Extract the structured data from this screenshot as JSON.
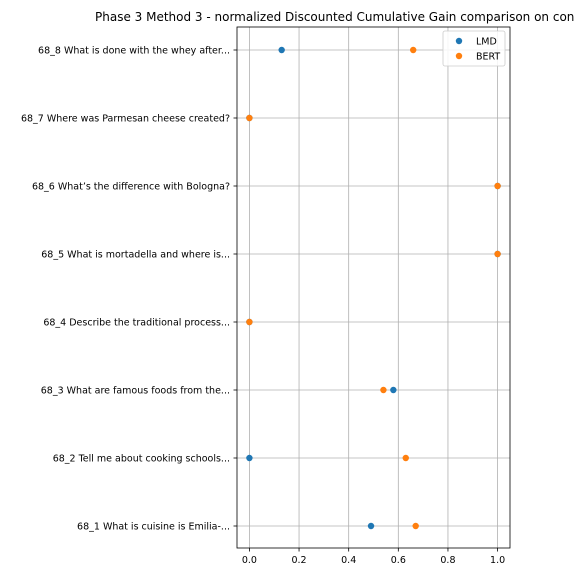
{
  "chart_data": {
    "type": "scatter",
    "title": "Phase 3 Method 3 - normalized Discounted Cumulative Gain comparison on con",
    "xlabel": "",
    "ylabel": "",
    "xlim": [
      -0.05,
      1.05
    ],
    "xticks": [
      "0.0",
      "0.2",
      "0.4",
      "0.6",
      "0.8",
      "1.0"
    ],
    "xtick_values": [
      0.0,
      0.2,
      0.4,
      0.6,
      0.8,
      1.0
    ],
    "grid": true,
    "legend_position": "top-right",
    "categories": [
      "68_1 What is cuisine is Emilia-...",
      "68_2 Tell me about cooking schools...",
      "68_3 What are famous foods from the...",
      "68_4 Describe the traditional process...",
      "68_5 What is mortadella and where is...",
      "68_6 What’s the difference with Bologna?",
      "68_7 Where was Parmesan cheese created?",
      "68_8 What is done with the whey after..."
    ],
    "series": [
      {
        "name": "LMD",
        "color": "#1f77b4",
        "values": [
          0.49,
          0.0,
          0.58,
          0.0,
          1.0,
          1.0,
          0.0,
          0.13
        ]
      },
      {
        "name": "BERT",
        "color": "#ff7f0e",
        "values": [
          0.67,
          0.63,
          0.54,
          0.0,
          1.0,
          1.0,
          0.0,
          0.66
        ]
      }
    ]
  }
}
